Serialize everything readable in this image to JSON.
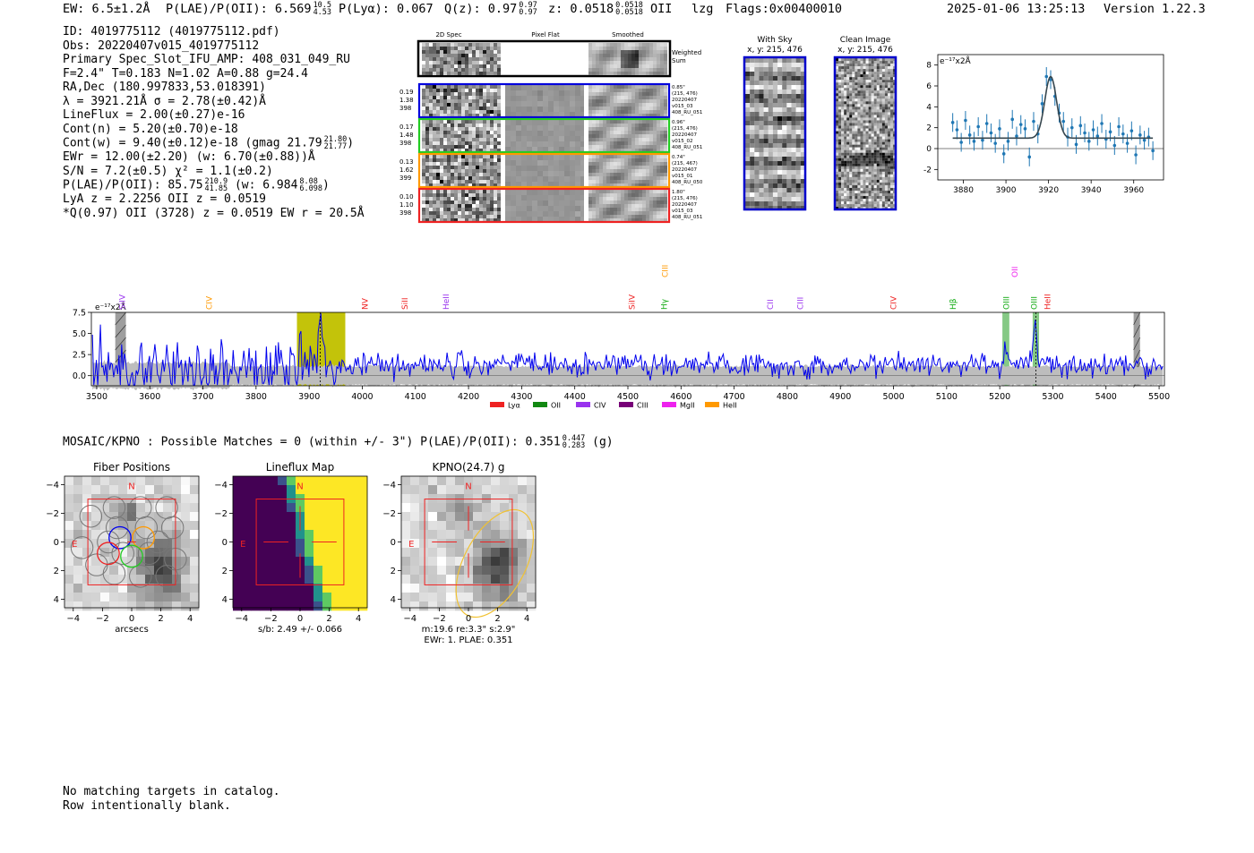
{
  "header": {
    "ew": "EW: 6.5±1.2Å",
    "plae_label": "P(LAE)/P(OII): 6.569",
    "plae_hi": "10.5",
    "plae_lo": "4.53",
    "plya": "P(Lyα): 0.067",
    "qz_label": "Q(z): 0.97",
    "qz_hi": "0.97",
    "qz_lo": "0.97",
    "z_label": "z: 0.0518",
    "z_hi": "0.0518",
    "z_lo": "0.0518",
    "z_line": "OII",
    "lzg": "lzg",
    "flags": "Flags:0x00400010",
    "timestamp": "2025-01-06 13:25:13",
    "version": "Version 1.22.3"
  },
  "info": {
    "id": "ID: 4019775112 (4019775112.pdf)",
    "obs": "Obs: 20220407v015_4019775112",
    "primary": "Primary Spec_Slot_IFU_AMP: 408_031_049_RU",
    "fit": "F=2.4\"  T=0.183  N=1.02  A=0.88  g=24.4",
    "radec": "RA,Dec (180.997833,53.018391)",
    "lambda": "λ = 3921.21Å  σ = 2.78(±0.42)Å",
    "lineflux": "LineFlux = 2.00(±0.27)e-16",
    "contn": "Cont(n) = 5.20(±0.70)e-18",
    "contw": "Cont(w) = 9.40(±0.12)e-18 (gmag 21.79",
    "contw_hi": "21.80",
    "contw_lo": "21.77",
    "contw_end": ")",
    "ewr": "EWr = 12.00(±2.20) (w: 6.70(±0.88))Å",
    "sn": "S/N = 7.2(±0.5)  χ² = 1.1(±0.2)",
    "plae2": "P(LAE)/P(OII): 85.75",
    "plae2_hi": "210.9",
    "plae2_lo": "41.85",
    "plae2_w": "(w: 6.984",
    "plae2_w_hi": "8.08",
    "plae2_w_lo": "6.098",
    "plae2_end": ")",
    "lya": "LyA z = 2.2256  OII z = 0.0519",
    "q": "*Q(0.97) OII (3728) z = 0.0519  EW r = 20.5Å"
  },
  "cutouts": {
    "col_2d": "2D Spec",
    "col_flat": "Pixel Flat",
    "col_smooth": "Smoothed",
    "weighted": "Weighted",
    "sum": "Sum",
    "rows": [
      {
        "color": "#0000dd",
        "w1": "0.19",
        "w2": "1.38",
        "w3": "398",
        "r1": "0.85\"",
        "r2": "(215, 476)",
        "r3": "20220407",
        "r4": "v015_03",
        "r5": "408_RU_051"
      },
      {
        "color": "#22cc22",
        "w1": "0.17",
        "w2": "1.48",
        "w3": "398",
        "r1": "0.96\"",
        "r2": "(215, 476)",
        "r3": "20220407",
        "r4": "v015_02",
        "r5": "408_RU_051"
      },
      {
        "color": "#ff9900",
        "w1": "0.13",
        "w2": "1.62",
        "w3": "399",
        "r1": "0.74\"",
        "r2": "(215, 467)",
        "r3": "20220407",
        "r4": "v015_01",
        "r5": "408_RU_050"
      },
      {
        "color": "#ee2222",
        "w1": "0.10",
        "w2": "1.10",
        "w3": "398",
        "r1": "1.80\"",
        "r2": "(215, 476)",
        "r3": "20220407",
        "r4": "v015_03",
        "r5": "408_RU_051"
      }
    ]
  },
  "sky": {
    "with_sky": "With Sky",
    "with_sky_xy": "x, y: 215, 476",
    "clean": "Clean Image",
    "clean_xy": "x, y: 215, 476"
  },
  "chart_data": [
    {
      "type": "scatter",
      "title": "",
      "ylabel": "e⁻¹⁷x2Å",
      "xlim": [
        3868,
        3974
      ],
      "ylim": [
        -3,
        9
      ],
      "xticks": [
        3880,
        3900,
        3920,
        3940,
        3960
      ],
      "yticks": [
        -2,
        0,
        2,
        4,
        6,
        8
      ],
      "fit_center": 3921,
      "fit_sigma": 2.78,
      "fit_baseline": 1.0,
      "fit_amplitude": 5.9,
      "x": [
        3875,
        3877,
        3879,
        3881,
        3883,
        3885,
        3887,
        3889,
        3891,
        3893,
        3895,
        3897,
        3899,
        3901,
        3903,
        3905,
        3907,
        3909,
        3911,
        3913,
        3915,
        3917,
        3919,
        3921,
        3923,
        3925,
        3927,
        3929,
        3931,
        3933,
        3935,
        3937,
        3939,
        3941,
        3943,
        3945,
        3947,
        3949,
        3951,
        3953,
        3955,
        3957,
        3959,
        3961,
        3963,
        3965,
        3967,
        3969
      ],
      "y": [
        2.5,
        1.8,
        0.6,
        2.7,
        1.3,
        0.7,
        2.1,
        0.8,
        2.4,
        1.5,
        0.5,
        1.9,
        -0.5,
        0.7,
        2.8,
        1.2,
        2.3,
        1.9,
        -0.8,
        2.6,
        1.4,
        4.3,
        6.9,
        6.6,
        5.0,
        3.4,
        2.6,
        1.1,
        2.0,
        0.4,
        2.2,
        1.5,
        0.7,
        1.8,
        1.2,
        2.4,
        0.9,
        1.6,
        0.3,
        2.1,
        1.4,
        0.5,
        1.7,
        -0.6,
        1.3,
        0.8,
        1.1,
        -0.2
      ],
      "err": [
        0.9,
        0.9,
        0.9,
        0.9,
        0.9,
        0.9,
        0.9,
        0.9,
        0.9,
        0.9,
        0.9,
        0.9,
        0.9,
        0.9,
        0.9,
        0.9,
        0.9,
        0.9,
        0.9,
        0.9,
        0.9,
        0.9,
        0.9,
        0.9,
        0.9,
        0.9,
        0.9,
        0.9,
        0.9,
        0.9,
        0.9,
        0.9,
        0.9,
        0.9,
        0.9,
        0.9,
        0.9,
        0.9,
        0.9,
        0.9,
        0.9,
        0.9,
        0.9,
        0.9,
        0.9,
        0.9,
        0.9,
        0.9
      ]
    },
    {
      "type": "line",
      "title": "",
      "ylabel": "e⁻¹⁷x2Å",
      "xlim": [
        3490,
        5510
      ],
      "ylim": [
        -1.2,
        7.5
      ],
      "xticks": [
        3500,
        3600,
        3700,
        3800,
        3900,
        4000,
        4100,
        4200,
        4300,
        4400,
        4500,
        4600,
        4700,
        4800,
        4900,
        5000,
        5100,
        5200,
        5300,
        5400,
        5500
      ],
      "yticks": [
        0.0,
        2.5,
        5.0,
        7.5
      ],
      "ytick_labels": [
        "0.0",
        "2.5",
        "5.0",
        "7.5"
      ],
      "series_name": "Spectrum",
      "noise_level": 1.0,
      "highlight_band": [
        3877,
        3968
      ],
      "peak_wavelength": 3921,
      "oii_bands": [
        [
          5205,
          5218
        ],
        [
          5262,
          5274
        ]
      ],
      "hatched_bands": [
        [
          3535,
          3555
        ],
        [
          5452,
          5464
        ]
      ],
      "emission_lines": [
        {
          "name": "SiIV",
          "wave": 3548,
          "color": "#9933ee",
          "row": "low"
        },
        {
          "name": "CIV",
          "wave": 3712,
          "color": "#ff9900",
          "row": "mid"
        },
        {
          "name": "NV",
          "wave": 4005,
          "color": "#ee2222",
          "row": "low"
        },
        {
          "name": "SiII",
          "wave": 4080,
          "color": "#ee2222",
          "row": "low"
        },
        {
          "name": "HeII",
          "wave": 4158,
          "color": "#9933ee",
          "row": "low"
        },
        {
          "name": "SiIV",
          "wave": 4508,
          "color": "#ee2222",
          "row": "low"
        },
        {
          "name": "Hγ",
          "wave": 4568,
          "color": "#11aa11",
          "row": "low"
        },
        {
          "name": "CIII",
          "wave": 4570,
          "color": "#ff9900",
          "row": "high"
        },
        {
          "name": "CII",
          "wave": 4768,
          "color": "#9933ee",
          "row": "low"
        },
        {
          "name": "CIII",
          "wave": 4825,
          "color": "#9933ee",
          "row": "low"
        },
        {
          "name": "CIV",
          "wave": 5000,
          "color": "#ee2222",
          "row": "low"
        },
        {
          "name": "Hβ",
          "wave": 5112,
          "color": "#11aa11",
          "row": "low"
        },
        {
          "name": "OIII",
          "wave": 5212,
          "color": "#11aa11",
          "row": "low"
        },
        {
          "name": "OII",
          "wave": 5228,
          "color": "#ee22ee",
          "row": "high"
        },
        {
          "name": "OIII",
          "wave": 5265,
          "color": "#11aa11",
          "row": "low"
        },
        {
          "name": "HeII",
          "wave": 5290,
          "color": "#ee2222",
          "row": "low"
        }
      ],
      "legend": [
        {
          "label": "Lyα",
          "color": "#ee2222"
        },
        {
          "label": "OII",
          "color": "#118811"
        },
        {
          "label": "CIV",
          "color": "#9933ee"
        },
        {
          "label": "CIII",
          "color": "#770077"
        },
        {
          "label": "MgII",
          "color": "#ee22ee"
        },
        {
          "label": "HeII",
          "color": "#ff9900"
        }
      ]
    }
  ],
  "mosaic": {
    "title": "MOSAIC/KPNO : Possible Matches = 0 (within +/- 3\")  P(LAE)/P(OII): 0.351",
    "hi": "0.447",
    "lo": "0.283",
    "band": "(g)"
  },
  "panels": [
    {
      "title": "Fiber Positions",
      "xlabel": "arcsecs",
      "n": "N",
      "e": "E",
      "sub2": "",
      "sub3": ""
    },
    {
      "title": "Lineflux Map",
      "xlabel": "s/b: 2.49 +/- 0.066",
      "n": "N",
      "e": "E",
      "sub2": "",
      "sub3": ""
    },
    {
      "title": "KPNO(24.7) g",
      "xlabel": "m:19.6  re:3.3\"  s:2.9\"",
      "sub2": "EWr: 1. PLAE: 0.351",
      "n": "N",
      "e": "E",
      "sub3": ""
    }
  ],
  "panel_ticks": [
    "−4",
    "−2",
    "0",
    "2",
    "4"
  ],
  "footer": {
    "line1": "No matching targets in catalog.",
    "line2": "Row intentionally blank."
  }
}
